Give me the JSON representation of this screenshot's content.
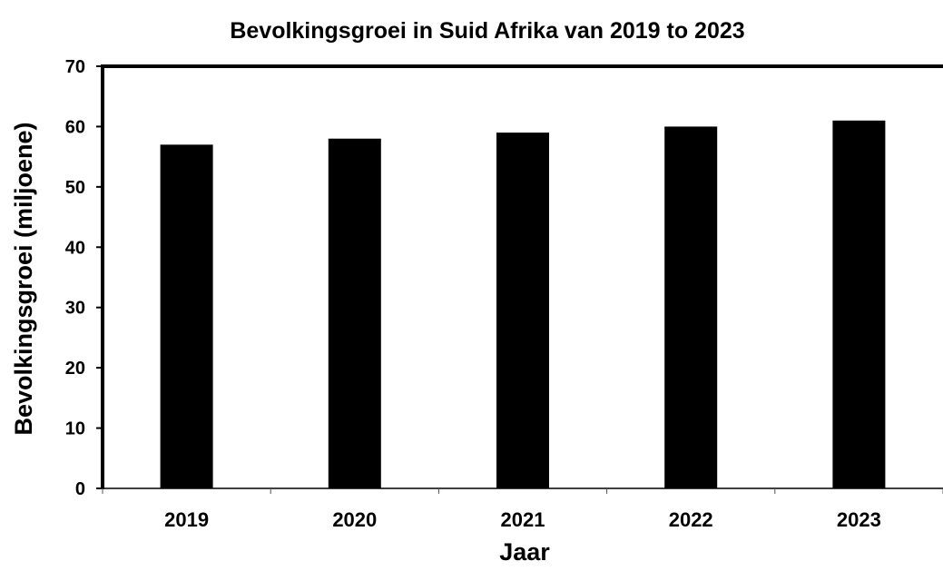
{
  "chart_data": {
    "type": "bar",
    "title": "Bevolkingsgroei in Suid Afrika van 2019 to 2023",
    "xlabel": "Jaar",
    "ylabel": "Bevolkingsgroei (miljoene)",
    "categories": [
      "2019",
      "2020",
      "2021",
      "2022",
      "2023"
    ],
    "values": [
      57,
      58,
      59,
      60,
      61
    ],
    "ylim": [
      0,
      70
    ],
    "yticks": [
      "0",
      "10",
      "20",
      "30",
      "40",
      "50",
      "60",
      "70"
    ],
    "grid": false,
    "legend": "none",
    "bar_color": "#000000"
  }
}
